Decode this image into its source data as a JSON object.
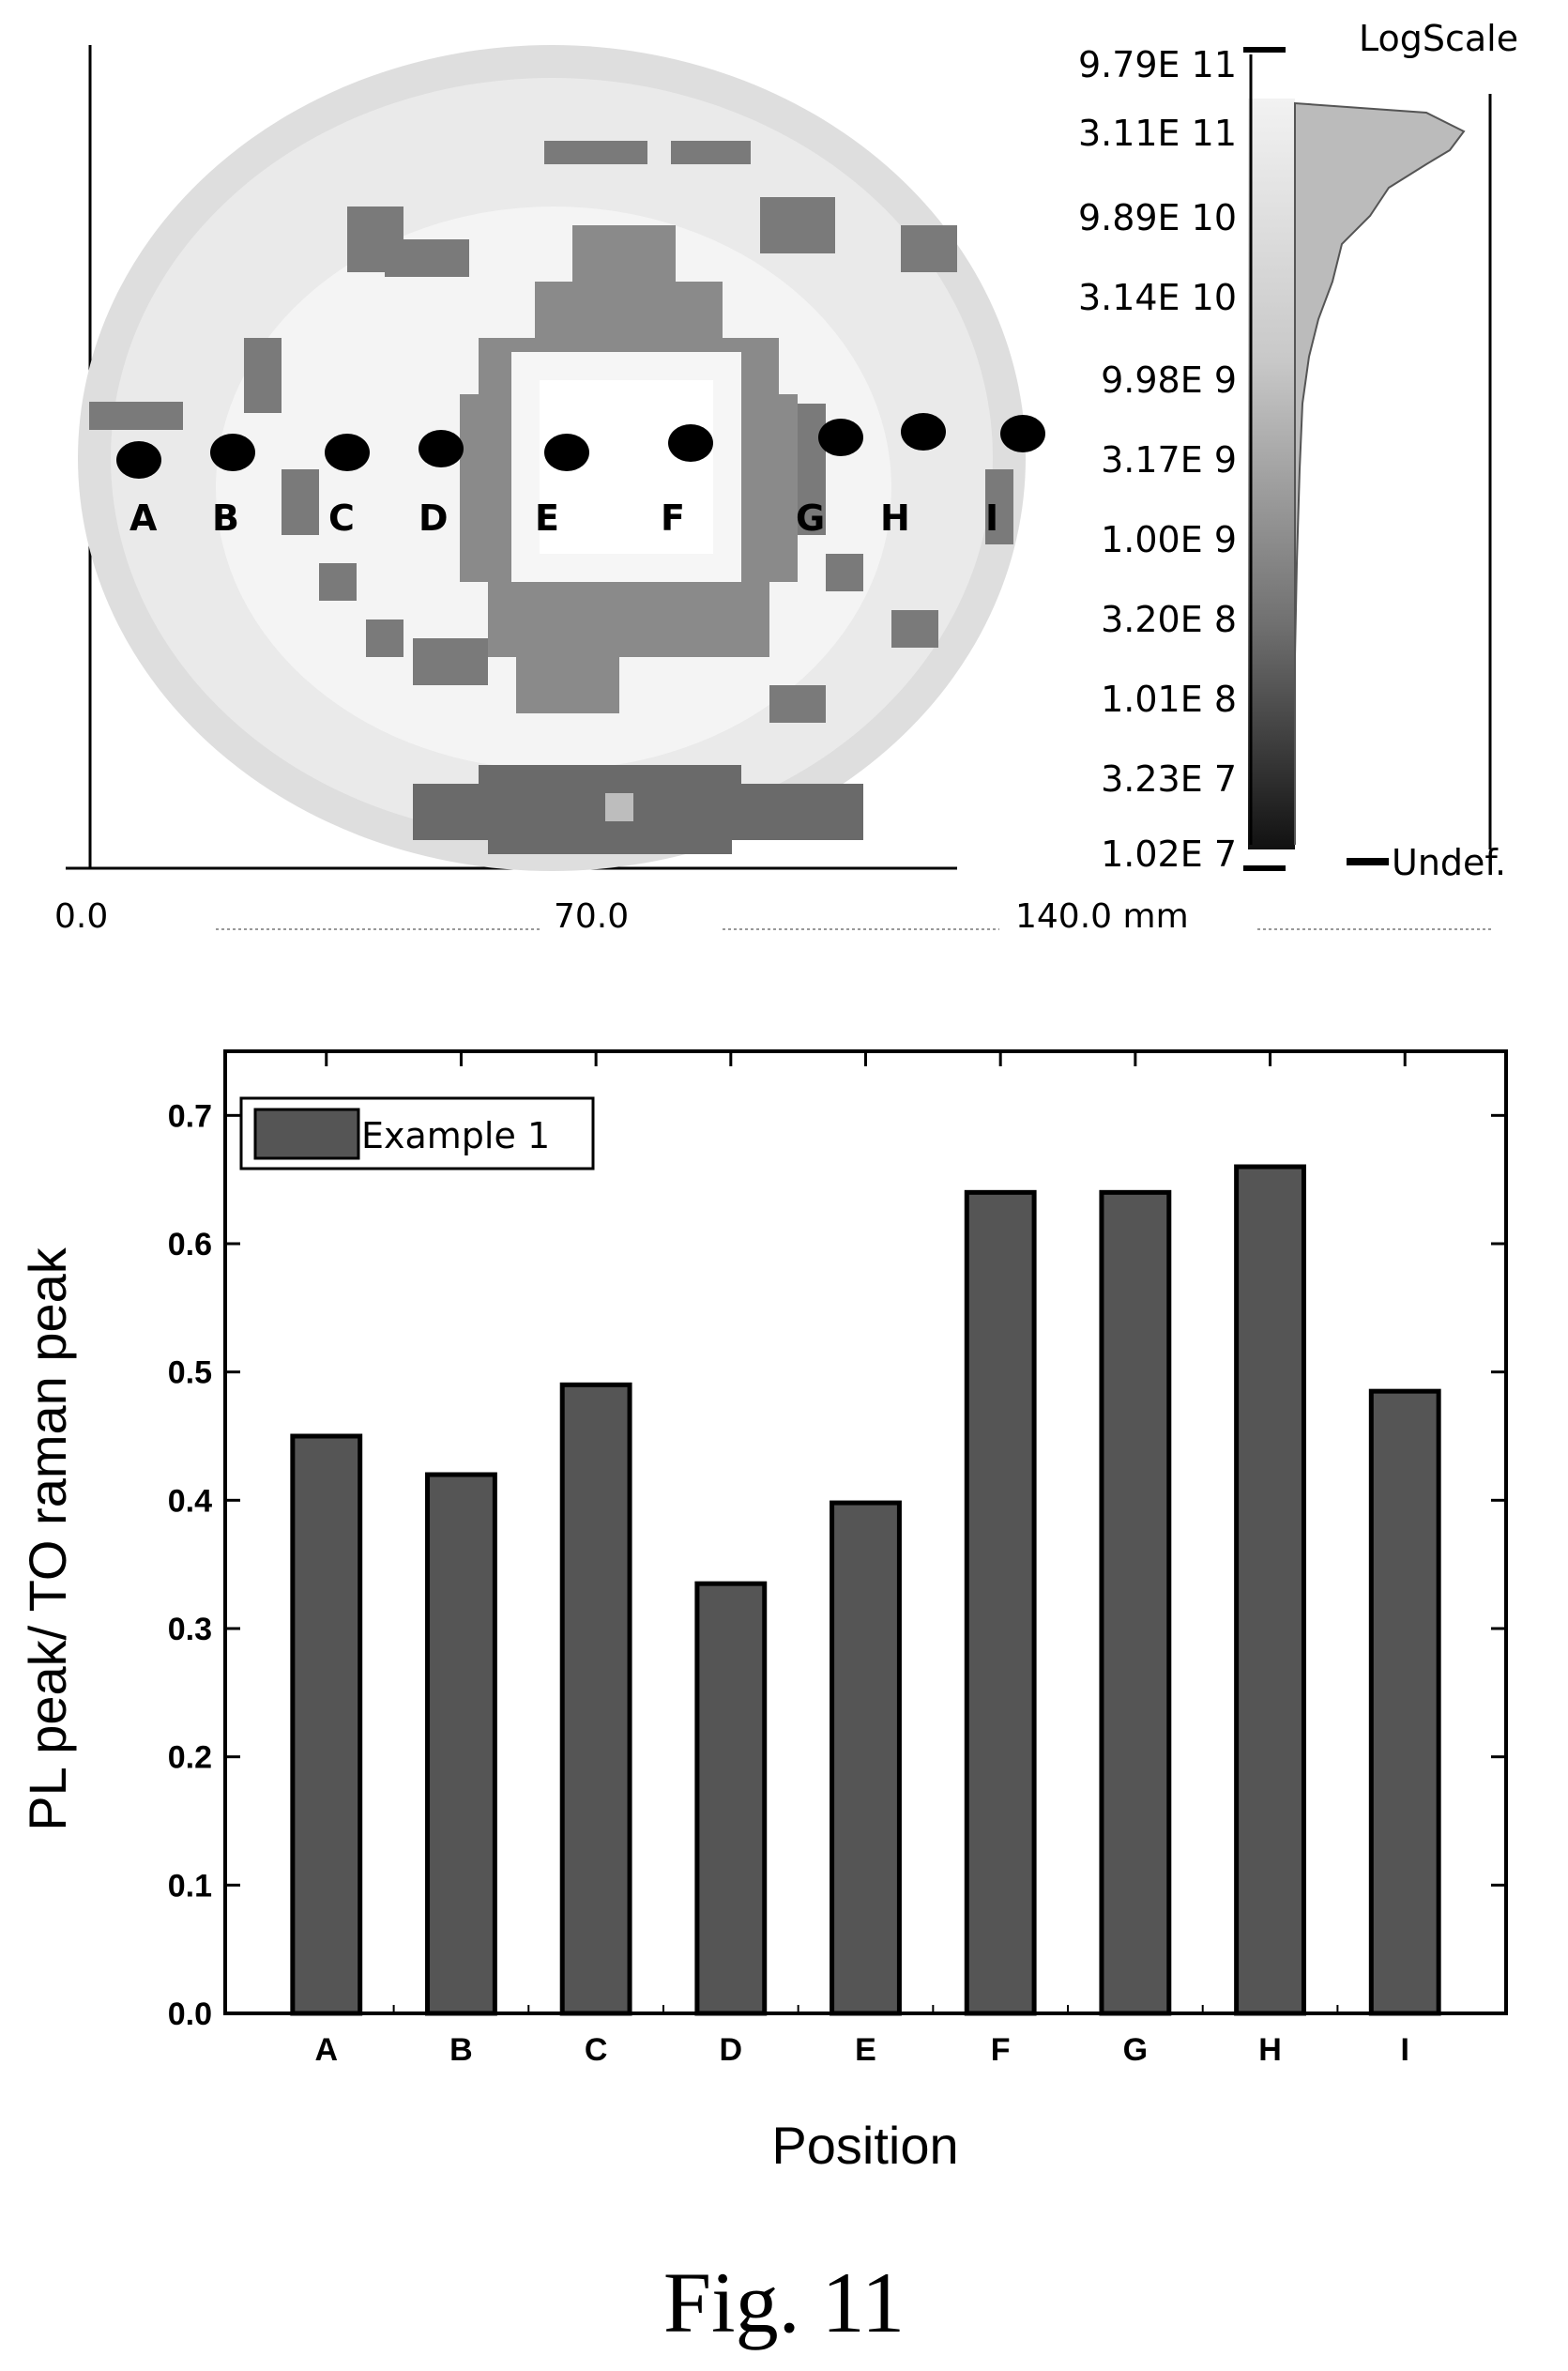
{
  "figure_label": "Fig. 11",
  "wafer_map": {
    "scale_label": "LogScale",
    "undefined_label": "Undef.",
    "scale_values": [
      "9.79E 11",
      "3.11E 11",
      "9.89E 10",
      "3.14E 10",
      "9.98E 9",
      "3.17E 9",
      "1.00E 9",
      "3.20E 8",
      "1.01E 8",
      "3.23E 7",
      "1.02E 7"
    ],
    "x_ticks": [
      "0.0",
      "70.0",
      "140.0 mm"
    ],
    "positions": [
      "A",
      "B",
      "C",
      "D",
      "E",
      "F",
      "G",
      "H",
      "I"
    ]
  },
  "chart_data": {
    "type": "bar",
    "categories": [
      "A",
      "B",
      "C",
      "D",
      "E",
      "F",
      "G",
      "H",
      "I"
    ],
    "series": [
      {
        "name": "Example 1",
        "values": [
          0.45,
          0.42,
          0.49,
          0.335,
          0.398,
          0.64,
          0.64,
          0.66,
          0.485
        ]
      }
    ],
    "xlabel": "Position",
    "ylabel": "PL peak/ TO raman peak",
    "ylim": [
      0,
      0.75
    ],
    "yticks": [
      "0.0",
      "0.1",
      "0.2",
      "0.3",
      "0.4",
      "0.5",
      "0.6",
      "0.7"
    ],
    "legend_position": "top-left",
    "bar_color": "#555555"
  }
}
